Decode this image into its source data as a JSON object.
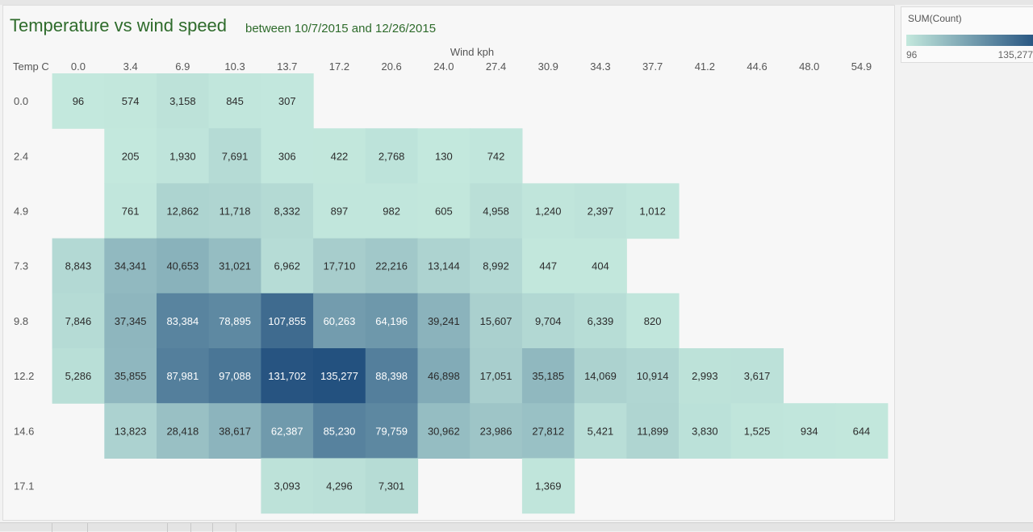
{
  "chart_data": {
    "type": "heatmap",
    "title": "Temperature vs wind speed",
    "subtitle": "between 10/7/2015 and 12/26/2015",
    "xlabel": "Wind kph",
    "ylabel": "Temp C",
    "x_categories": [
      "0.0",
      "3.4",
      "6.9",
      "10.3",
      "13.7",
      "17.2",
      "20.6",
      "24.0",
      "27.4",
      "30.9",
      "34.3",
      "37.7",
      "41.2",
      "44.6",
      "48.0",
      "54.9"
    ],
    "y_categories": [
      "0.0",
      "2.4",
      "4.9",
      "7.3",
      "9.8",
      "12.2",
      "14.6",
      "17.1"
    ],
    "values": [
      [
        96,
        574,
        3158,
        845,
        307,
        null,
        null,
        null,
        null,
        null,
        null,
        null,
        null,
        null,
        null,
        null
      ],
      [
        null,
        205,
        1930,
        7691,
        306,
        422,
        2768,
        130,
        742,
        null,
        null,
        null,
        null,
        null,
        null,
        null
      ],
      [
        null,
        761,
        12862,
        11718,
        8332,
        897,
        982,
        605,
        4958,
        1240,
        2397,
        1012,
        null,
        null,
        null,
        null
      ],
      [
        8843,
        34341,
        40653,
        31021,
        6962,
        17710,
        22216,
        13144,
        8992,
        447,
        404,
        null,
        null,
        null,
        null,
        null
      ],
      [
        7846,
        37345,
        83384,
        78895,
        107855,
        60263,
        64196,
        39241,
        15607,
        9704,
        6339,
        820,
        null,
        null,
        null,
        null
      ],
      [
        5286,
        35855,
        87981,
        97088,
        131702,
        135277,
        88398,
        46898,
        17051,
        35185,
        14069,
        10914,
        2993,
        3617,
        null,
        null
      ],
      [
        null,
        13823,
        28418,
        38617,
        62387,
        85230,
        79759,
        30962,
        23986,
        27812,
        5421,
        11899,
        3830,
        1525,
        934,
        644
      ],
      [
        null,
        null,
        null,
        null,
        3093,
        4296,
        7301,
        null,
        null,
        1369,
        null,
        null,
        null,
        null,
        null,
        null
      ]
    ],
    "color_scale": {
      "min": 96,
      "max": 135277,
      "low_color": "#c3e8dd",
      "high_color": "#23517f"
    },
    "legend": {
      "title": "SUM(Count)",
      "min_label": "96",
      "max_label": "135,277",
      "position": "top-right"
    }
  }
}
